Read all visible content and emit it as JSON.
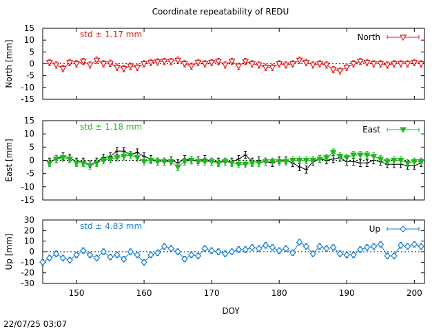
{
  "title": "Coordinate repeatability of REDU",
  "timestamp": "22/07/25 03:07",
  "xlabel": "DOY",
  "xlim": [
    145,
    201.5
  ],
  "xticks": [
    150,
    160,
    170,
    180,
    190,
    200
  ],
  "chart_data": [
    {
      "type": "line",
      "ylabel": "North [mm]",
      "ylim": [
        -15,
        15
      ],
      "yticks": [
        -15,
        -10,
        -5,
        0,
        5,
        10,
        15
      ],
      "std_label": "std ± 1.17 mm",
      "grid": false,
      "legend_position": "top-right",
      "series": [
        {
          "name": "North",
          "color": "#e41a1c",
          "marker": "triangle-down-open",
          "x": [
            146,
            147,
            148,
            149,
            150,
            151,
            152,
            153,
            154,
            155,
            156,
            157,
            158,
            159,
            160,
            161,
            162,
            163,
            164,
            165,
            166,
            167,
            168,
            169,
            170,
            171,
            172,
            173,
            174,
            175,
            176,
            177,
            178,
            179,
            180,
            181,
            182,
            183,
            184,
            185,
            186,
            187,
            188,
            189,
            190,
            191,
            192,
            193,
            194,
            195,
            196,
            197,
            198,
            199,
            200,
            201
          ],
          "y": [
            0.5,
            -0.5,
            -2,
            0.5,
            0,
            1,
            -0.5,
            1.5,
            0,
            0.2,
            -1.5,
            -2,
            -1,
            -1.5,
            0,
            0.5,
            0.8,
            1,
            1,
            1.5,
            0,
            -1,
            0.5,
            0,
            0.5,
            1,
            -0.5,
            1,
            -1,
            1,
            0,
            -0.5,
            -1.5,
            -1.5,
            0,
            -0.5,
            0,
            1.5,
            0.5,
            -0.5,
            0,
            -0.5,
            -2.5,
            -3,
            -1.5,
            0,
            1,
            0.5,
            0,
            0,
            -0.5,
            0,
            0,
            0,
            0.5,
            0
          ]
        }
      ]
    },
    {
      "type": "line",
      "ylabel": "East [mm]",
      "ylim": [
        -15,
        15
      ],
      "yticks": [
        -15,
        -10,
        -5,
        0,
        5,
        10,
        15
      ],
      "std_label": "std ± 1.18 mm",
      "grid": false,
      "legend_position": "top-right",
      "series": [
        {
          "name": "East",
          "color": "#1fb71f",
          "marker": "triangle-down-filled",
          "x": [
            146,
            147,
            148,
            149,
            150,
            151,
            152,
            153,
            154,
            155,
            156,
            157,
            158,
            159,
            160,
            161,
            162,
            163,
            164,
            165,
            166,
            167,
            168,
            169,
            170,
            171,
            172,
            173,
            174,
            175,
            176,
            177,
            178,
            179,
            180,
            181,
            182,
            183,
            184,
            185,
            186,
            187,
            188,
            189,
            190,
            191,
            192,
            193,
            194,
            195,
            196,
            197,
            198,
            199,
            200,
            201
          ],
          "y": [
            -1,
            0.5,
            1,
            0.5,
            -1,
            -1,
            -2,
            -1,
            0,
            0.5,
            1,
            1.5,
            2,
            1,
            -0.5,
            0,
            -0.5,
            -0.5,
            -0.5,
            -2.5,
            -0.5,
            0,
            -0.5,
            -0.5,
            -0.5,
            -1,
            -0.5,
            -1,
            -1.5,
            -1.5,
            -1,
            -1,
            -0.5,
            -0.5,
            -0.5,
            -0.5,
            0,
            0,
            0,
            0,
            0.5,
            1,
            3,
            1.5,
            1,
            2,
            2,
            2,
            1.5,
            0.5,
            -0.5,
            0,
            0,
            -1,
            -0.5,
            -0.5
          ]
        },
        {
          "name": "",
          "color": "#000000",
          "marker": "cross",
          "x": [
            146,
            147,
            148,
            149,
            150,
            151,
            152,
            153,
            154,
            155,
            156,
            157,
            158,
            159,
            160,
            161,
            162,
            163,
            164,
            165,
            166,
            167,
            168,
            169,
            170,
            171,
            172,
            173,
            174,
            175,
            176,
            177,
            178,
            179,
            180,
            181,
            182,
            183,
            184,
            185,
            186,
            187,
            188,
            189,
            190,
            191,
            192,
            193,
            194,
            195,
            196,
            197,
            198,
            199,
            200,
            201
          ],
          "y": [
            -0.5,
            0.5,
            1.5,
            1,
            -0.5,
            -0.5,
            -1.5,
            -0.5,
            1,
            1.5,
            3.5,
            3.5,
            2,
            3,
            1.5,
            0.5,
            -0.5,
            -0.5,
            0,
            -1,
            0.5,
            0,
            0,
            0.5,
            -0.5,
            -0.5,
            -0.5,
            -0.5,
            0.5,
            2,
            -0.5,
            0,
            -0.5,
            -1,
            0,
            0,
            -1,
            -2.5,
            -3.5,
            -0.5,
            0.5,
            0,
            0.5,
            1,
            -0.5,
            -0.5,
            -1,
            -1,
            0,
            -0.5,
            -1.5,
            -1.5,
            -1.5,
            -2,
            -2,
            -1
          ]
        }
      ]
    },
    {
      "type": "line",
      "ylabel": "Up [mm]",
      "ylim": [
        -30,
        30
      ],
      "yticks": [
        -30,
        -20,
        -10,
        0,
        10,
        20,
        30
      ],
      "std_label": "std ± 4.83 mm",
      "grid": false,
      "legend_position": "top-right",
      "series": [
        {
          "name": "Up",
          "color": "#1a7fd4",
          "marker": "diamond-open",
          "x": [
            145,
            146,
            147,
            148,
            149,
            150,
            151,
            152,
            153,
            154,
            155,
            156,
            157,
            158,
            159,
            160,
            161,
            162,
            163,
            164,
            165,
            166,
            167,
            168,
            169,
            170,
            171,
            172,
            173,
            174,
            175,
            176,
            177,
            178,
            179,
            180,
            181,
            182,
            183,
            184,
            185,
            186,
            187,
            188,
            189,
            190,
            191,
            192,
            193,
            194,
            195,
            196,
            197,
            198,
            199,
            200,
            201
          ],
          "y": [
            -10,
            -6,
            -2,
            -6,
            -8,
            -3,
            1,
            -3,
            -6,
            0,
            -5,
            -3,
            -7,
            0,
            -3,
            -10,
            -3,
            -1,
            5,
            3,
            0,
            -7,
            -3,
            -4,
            3,
            1,
            0,
            -2,
            0,
            2,
            2,
            4,
            3,
            6,
            4,
            1,
            3,
            -1,
            9,
            5,
            -2,
            5,
            3,
            4,
            -2,
            -3,
            -3,
            2,
            4,
            5,
            7,
            -4,
            -4,
            6,
            5,
            7,
            5
          ]
        }
      ]
    }
  ]
}
